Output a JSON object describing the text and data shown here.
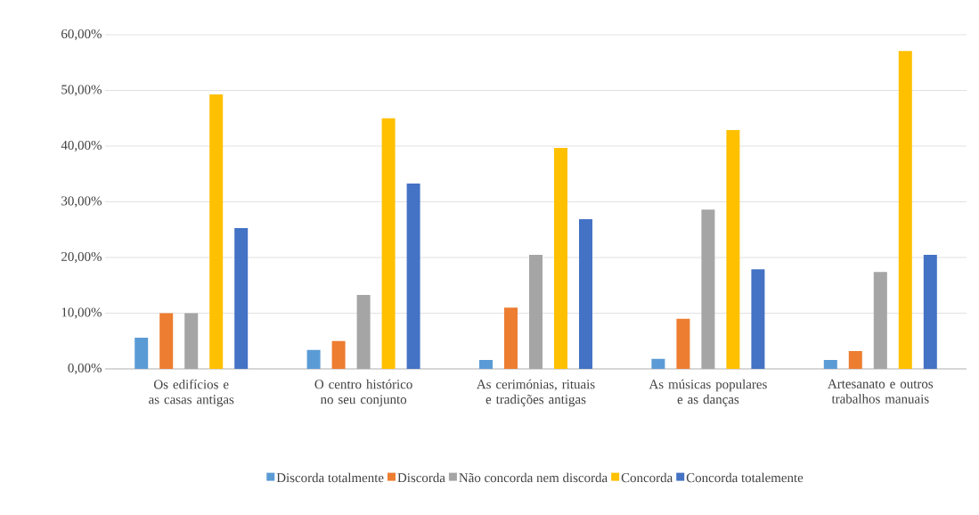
{
  "chart_data": {
    "type": "bar",
    "categories": [
      "Os edifícios e as casas antigas",
      "O centro histórico no seu conjunto",
      "As cerimónias, rituais e tradições antigas",
      "As músicas populares e as danças",
      "Artesanato e outros trabalhos manuais"
    ],
    "series": [
      {
        "name": "Discorda totalmente",
        "color": "#5b9bd5",
        "values": [
          5.6,
          3.4,
          1.6,
          1.8,
          1.6
        ]
      },
      {
        "name": "Discorda",
        "color": "#ed7d31",
        "values": [
          10.0,
          5.0,
          11.0,
          9.0,
          3.2
        ]
      },
      {
        "name": "Não concorda nem discorda",
        "color": "#a5a5a5",
        "values": [
          10.0,
          13.3,
          20.5,
          28.6,
          17.4
        ]
      },
      {
        "name": "Concorda",
        "color": "#ffc000",
        "values": [
          49.3,
          45.0,
          39.7,
          42.9,
          57.1
        ]
      },
      {
        "name": "Concorda totalemente",
        "color": "#4472c4",
        "values": [
          25.3,
          33.3,
          26.9,
          17.9,
          20.5
        ]
      }
    ],
    "ylim": [
      0,
      60
    ],
    "yticks": [
      {
        "value": 0,
        "label": "0,00%"
      },
      {
        "value": 10,
        "label": "10,00%"
      },
      {
        "value": 20,
        "label": "20,00%"
      },
      {
        "value": 30,
        "label": "30,00%"
      },
      {
        "value": 40,
        "label": "40,00%"
      },
      {
        "value": 50,
        "label": "50,00%"
      },
      {
        "value": 60,
        "label": "60,00%"
      }
    ],
    "grid": "y",
    "legend": "bottom"
  }
}
